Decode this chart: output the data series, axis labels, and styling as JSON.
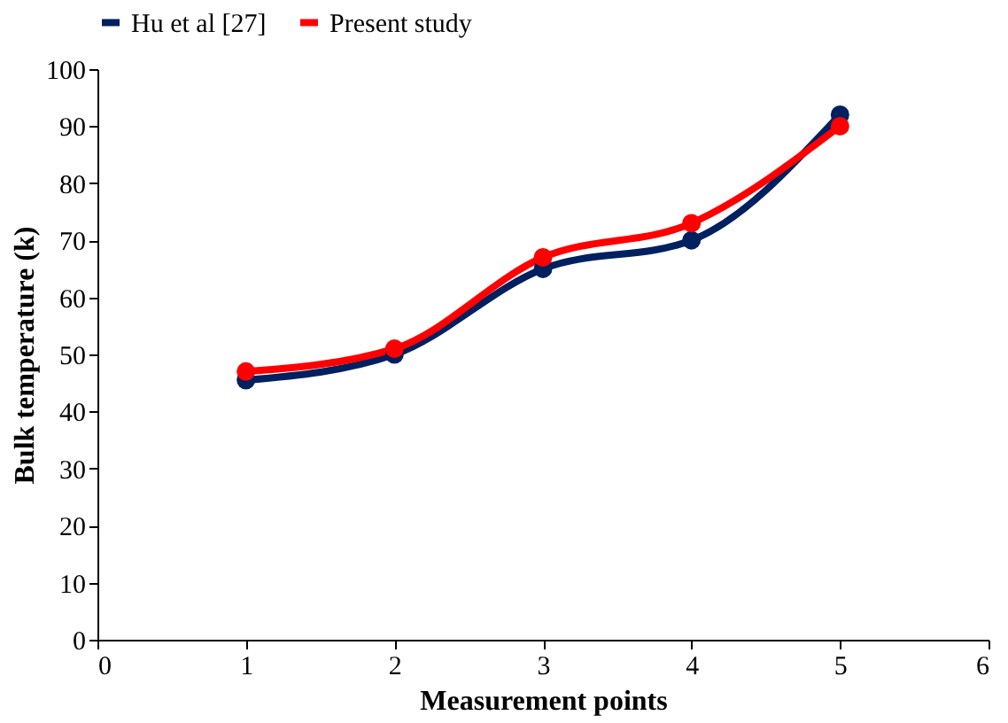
{
  "chart_data": {
    "type": "line",
    "xlabel": "Measurement points",
    "ylabel": "Bulk temperature (k)",
    "x": [
      1,
      2,
      3,
      4,
      5
    ],
    "series": [
      {
        "name": "Hu et al [27]",
        "color": "#002060",
        "values": [
          45.5,
          50,
          65,
          70,
          92
        ]
      },
      {
        "name": "Present study",
        "color": "#ff0000",
        "values": [
          47,
          51,
          67,
          73,
          90
        ]
      }
    ],
    "xlim": [
      0,
      6
    ],
    "xticks": [
      0,
      1,
      2,
      3,
      4,
      5,
      6
    ],
    "ylim": [
      0,
      100
    ],
    "yticks": [
      0,
      10,
      20,
      30,
      40,
      50,
      60,
      70,
      80,
      90,
      100
    ],
    "grid": false,
    "legend": "top",
    "marker": "circle",
    "line_style": "solid"
  }
}
